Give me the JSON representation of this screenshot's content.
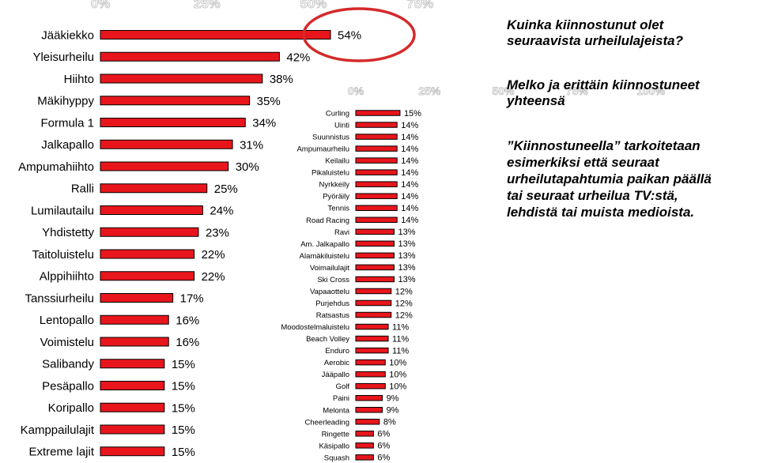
{
  "notes": {
    "question": "Kuinka kiinnostunut olet\nseuraavista urheilulajeista?",
    "subtitle": "Melko ja erittäin kiinnostuneet\nyhteensä",
    "definition": "”Kiinnostuneella” tarkoitetaan\nesimerkiksi että seuraat\nurheilutapahtumia paikan päällä\ntai seuraat urheilua TV:stä,\nlehdistä tai muista medioista."
  },
  "colors": {
    "bar": "#e8161c",
    "highlight_circle": "#d42a2a"
  },
  "chart_data": [
    {
      "type": "bar",
      "orientation": "horizontal",
      "categories": [
        "Jääkiekko",
        "Yleisurheilu",
        "Hiihto",
        "Mäkihyppy",
        "Formula 1",
        "Jalkapallo",
        "Ampumahiihto",
        "Ralli",
        "Lumilautailu",
        "Yhdistetty",
        "Taitoluistelu",
        "Alppihiihto",
        "Tanssiurheilu",
        "Lentopallo",
        "Voimistelu",
        "Salibandy",
        "Pesäpallo",
        "Koripallo",
        "Kamppailulajit",
        "Extreme lajit"
      ],
      "values": [
        54,
        42,
        38,
        35,
        34,
        31,
        30,
        25,
        24,
        23,
        22,
        22,
        17,
        16,
        16,
        15,
        15,
        15,
        15,
        15
      ],
      "value_labels": [
        "54%",
        "42%",
        "38%",
        "35%",
        "34%",
        "31%",
        "30%",
        "25%",
        "24%",
        "23%",
        "22%",
        "22%",
        "17%",
        "16%",
        "16%",
        "15%",
        "15%",
        "15%",
        "15%",
        "15%"
      ],
      "tick_labels": [
        "0%",
        "25%",
        "50%",
        "75%"
      ],
      "xlim": [
        0,
        100
      ],
      "highlight": "Jääkiekko"
    },
    {
      "type": "bar",
      "orientation": "horizontal",
      "categories": [
        "Curling",
        "Uinti",
        "Suunnistus",
        "Ampumaurheilu",
        "Keilailu",
        "Pikaluistelu",
        "Nyrkkeily",
        "Pyöräily",
        "Tennis",
        "Road Racing",
        "Ravi",
        "Am. Jalkapallo",
        "Alamäkiluistelu",
        "Voimailulajit",
        "Ski Cross",
        "Vapaaottelu",
        "Purjehdus",
        "Ratsastus",
        "Moodostelmaluistelu",
        "Beach Volley",
        "Enduro",
        "Aerobic",
        "Jääpallo",
        "Golf",
        "Paini",
        "Melonta",
        "Cheerleading",
        "Ringette",
        "Käsipallo",
        "Squash"
      ],
      "values": [
        15,
        14,
        14,
        14,
        14,
        14,
        14,
        14,
        14,
        14,
        13,
        13,
        13,
        13,
        13,
        12,
        12,
        12,
        11,
        11,
        11,
        10,
        10,
        10,
        9,
        9,
        8,
        6,
        6,
        6
      ],
      "value_labels": [
        "15%",
        "14%",
        "14%",
        "14%",
        "14%",
        "14%",
        "14%",
        "14%",
        "14%",
        "14%",
        "13%",
        "13%",
        "13%",
        "13%",
        "13%",
        "12%",
        "12%",
        "12%",
        "11%",
        "11%",
        "11%",
        "10%",
        "10%",
        "10%",
        "9%",
        "9%",
        "8%",
        "6%",
        "6%",
        "6%"
      ],
      "tick_labels": [
        "0%",
        "25%",
        "50%",
        "75%",
        "100%"
      ],
      "xlim": [
        0,
        100
      ]
    }
  ]
}
